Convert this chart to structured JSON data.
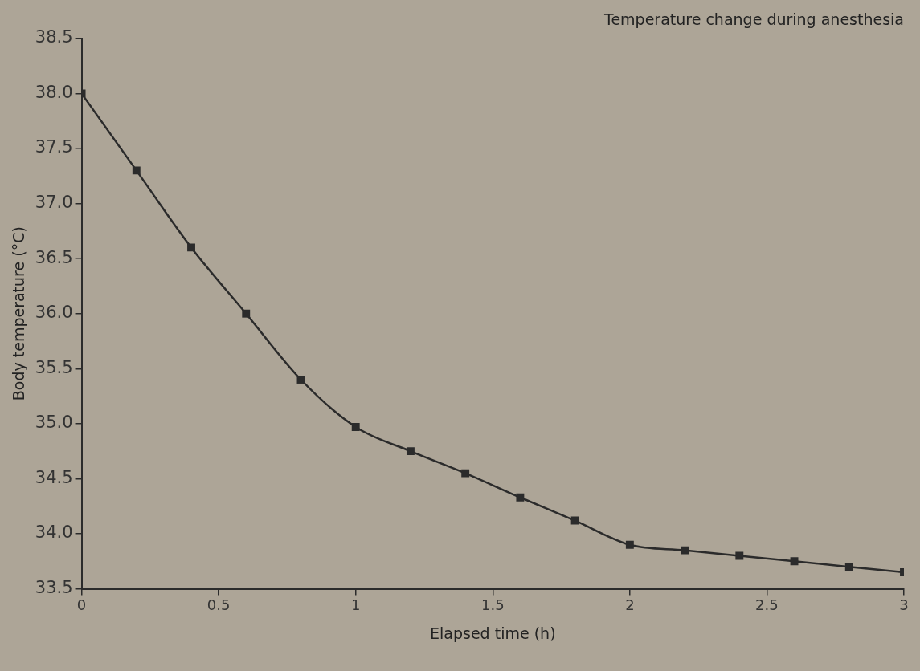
{
  "chart_data": {
    "type": "line",
    "title": "Temperature change during anesthesia",
    "xlabel": "Elapsed time (h)",
    "ylabel": "Body temperature (°C)",
    "x": [
      0,
      0.2,
      0.4,
      0.6,
      0.8,
      1.0,
      1.2,
      1.4,
      1.6,
      1.8,
      2.0,
      2.2,
      2.4,
      2.6,
      2.8,
      3.0
    ],
    "series": [
      {
        "color": "#2b2b2b",
        "values": [
          38.0,
          37.3,
          36.6,
          36.0,
          35.4,
          34.97,
          34.75,
          34.55,
          34.33,
          34.12,
          33.9,
          33.85,
          33.8,
          33.75,
          33.7,
          33.65
        ]
      }
    ],
    "xlim": [
      0,
      3
    ],
    "xticks": [
      0,
      0.5,
      1,
      1.5,
      2,
      2.5,
      3
    ],
    "ylim": [
      33.5,
      38.5
    ],
    "yticks": [
      {
        "value": 33.5,
        "label": "33.5"
      },
      {
        "value": 34,
        "label": "34.0"
      },
      {
        "value": 34.5,
        "label": "34.5"
      },
      {
        "value": 35,
        "label": "35.0"
      },
      {
        "value": 35.5,
        "label": "35.5"
      },
      {
        "value": 36,
        "label": "36.0"
      },
      {
        "value": 36.5,
        "label": "36.5"
      },
      {
        "value": 37,
        "label": "37.0"
      },
      {
        "value": 37.5,
        "label": "37.5"
      },
      {
        "value": 38,
        "label": "38.0"
      },
      {
        "value": 38.5,
        "label": "38.5"
      }
    ],
    "grid": false,
    "legend": false,
    "marker": "square",
    "line_style": "solid"
  }
}
